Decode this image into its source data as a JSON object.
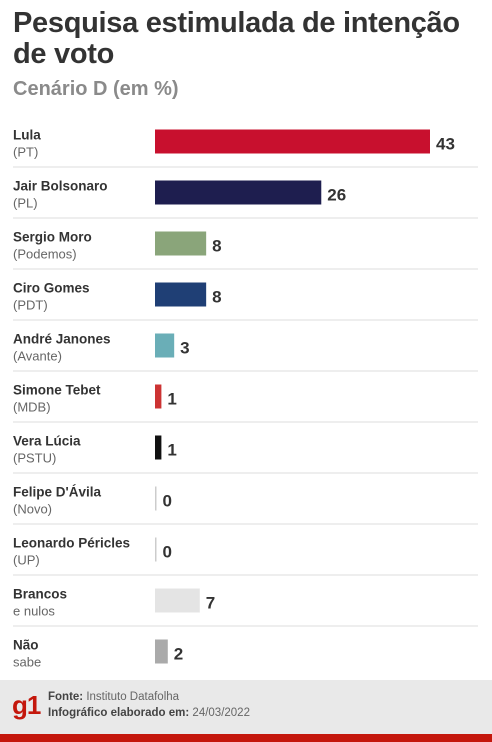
{
  "header": {
    "title": "Pesquisa estimulada de intenção de voto",
    "subtitle": "Cenário D (em %)"
  },
  "footer": {
    "logo": "g1",
    "source_label": "Fonte:",
    "source_value": "Instituto Datafolha",
    "credit_label": "Infográfico elaborado em:",
    "credit_value": "24/03/2022"
  },
  "chart_data": {
    "type": "bar",
    "orientation": "horizontal",
    "title": "Pesquisa estimulada de intenção de voto",
    "subtitle": "Cenário D (em %)",
    "categories": [
      {
        "name": "Lula",
        "party": "(PT)"
      },
      {
        "name": "Jair Bolsonaro",
        "party": "(PL)"
      },
      {
        "name": "Sergio Moro",
        "party": "(Podemos)"
      },
      {
        "name": "Ciro Gomes",
        "party": "(PDT)"
      },
      {
        "name": "André Janones",
        "party": "(Avante)"
      },
      {
        "name": "Simone Tebet",
        "party": "(MDB)"
      },
      {
        "name": "Vera Lúcia",
        "party": "(PSTU)"
      },
      {
        "name": "Felipe D'Ávila",
        "party": "(Novo)"
      },
      {
        "name": "Leonardo Péricles",
        "party": "(UP)"
      },
      {
        "name": "Brancos",
        "party": "e nulos"
      },
      {
        "name": "Não",
        "party": "sabe"
      }
    ],
    "values": [
      43,
      26,
      8,
      8,
      3,
      1,
      1,
      0,
      0,
      7,
      2
    ],
    "colors": [
      "#c8102e",
      "#1e1e4f",
      "#8aa57a",
      "#1f3f75",
      "#6aaeb7",
      "#cc3333",
      "#111111",
      "#cccccc",
      "#cccccc",
      "#e4e4e4",
      "#aaaaaa"
    ],
    "xlim": [
      0,
      43
    ],
    "grid": false,
    "legend": "none"
  }
}
